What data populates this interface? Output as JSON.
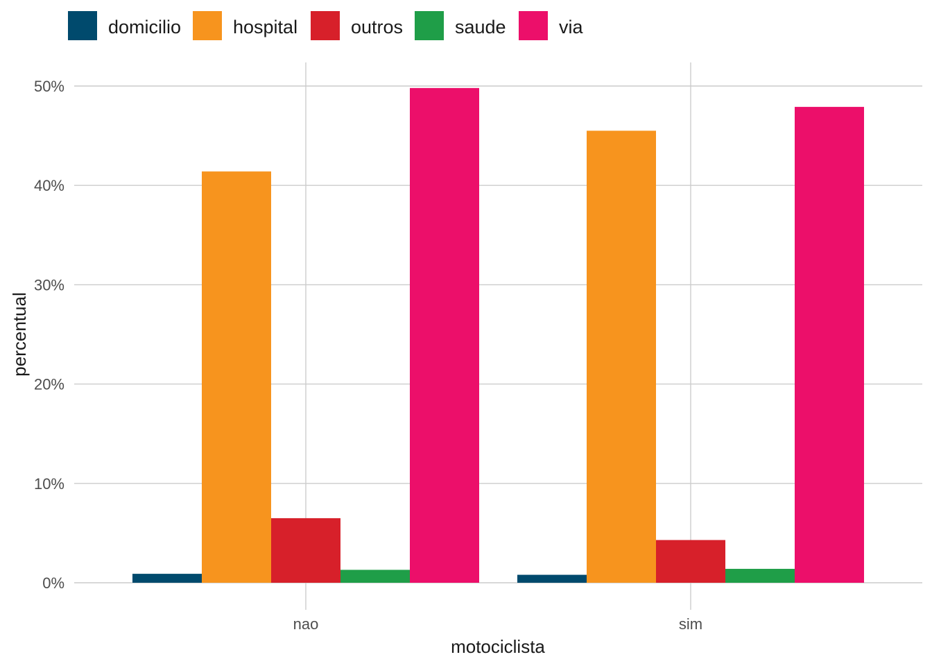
{
  "chart_data": {
    "type": "bar",
    "categories": [
      "nao",
      "sim"
    ],
    "series": [
      {
        "name": "domicilio",
        "color": "#004A6D",
        "values": [
          0.9,
          0.8
        ]
      },
      {
        "name": "hospital",
        "color": "#F7941E",
        "values": [
          41.4,
          45.5
        ]
      },
      {
        "name": "outros",
        "color": "#D7202A",
        "values": [
          6.5,
          4.3
        ]
      },
      {
        "name": "saude",
        "color": "#1F9E48",
        "values": [
          1.3,
          1.4
        ]
      },
      {
        "name": "via",
        "color": "#EC0F6A",
        "values": [
          49.8,
          47.9
        ]
      }
    ],
    "yticks": [
      0,
      10,
      20,
      30,
      40,
      50
    ],
    "ytick_labels": [
      "0%",
      "10%",
      "20%",
      "30%",
      "40%",
      "50%"
    ],
    "ylim": [
      0,
      52
    ],
    "xlabel": "motociclista",
    "ylabel": "percentual",
    "grid": true,
    "legend_position": "top-left"
  }
}
